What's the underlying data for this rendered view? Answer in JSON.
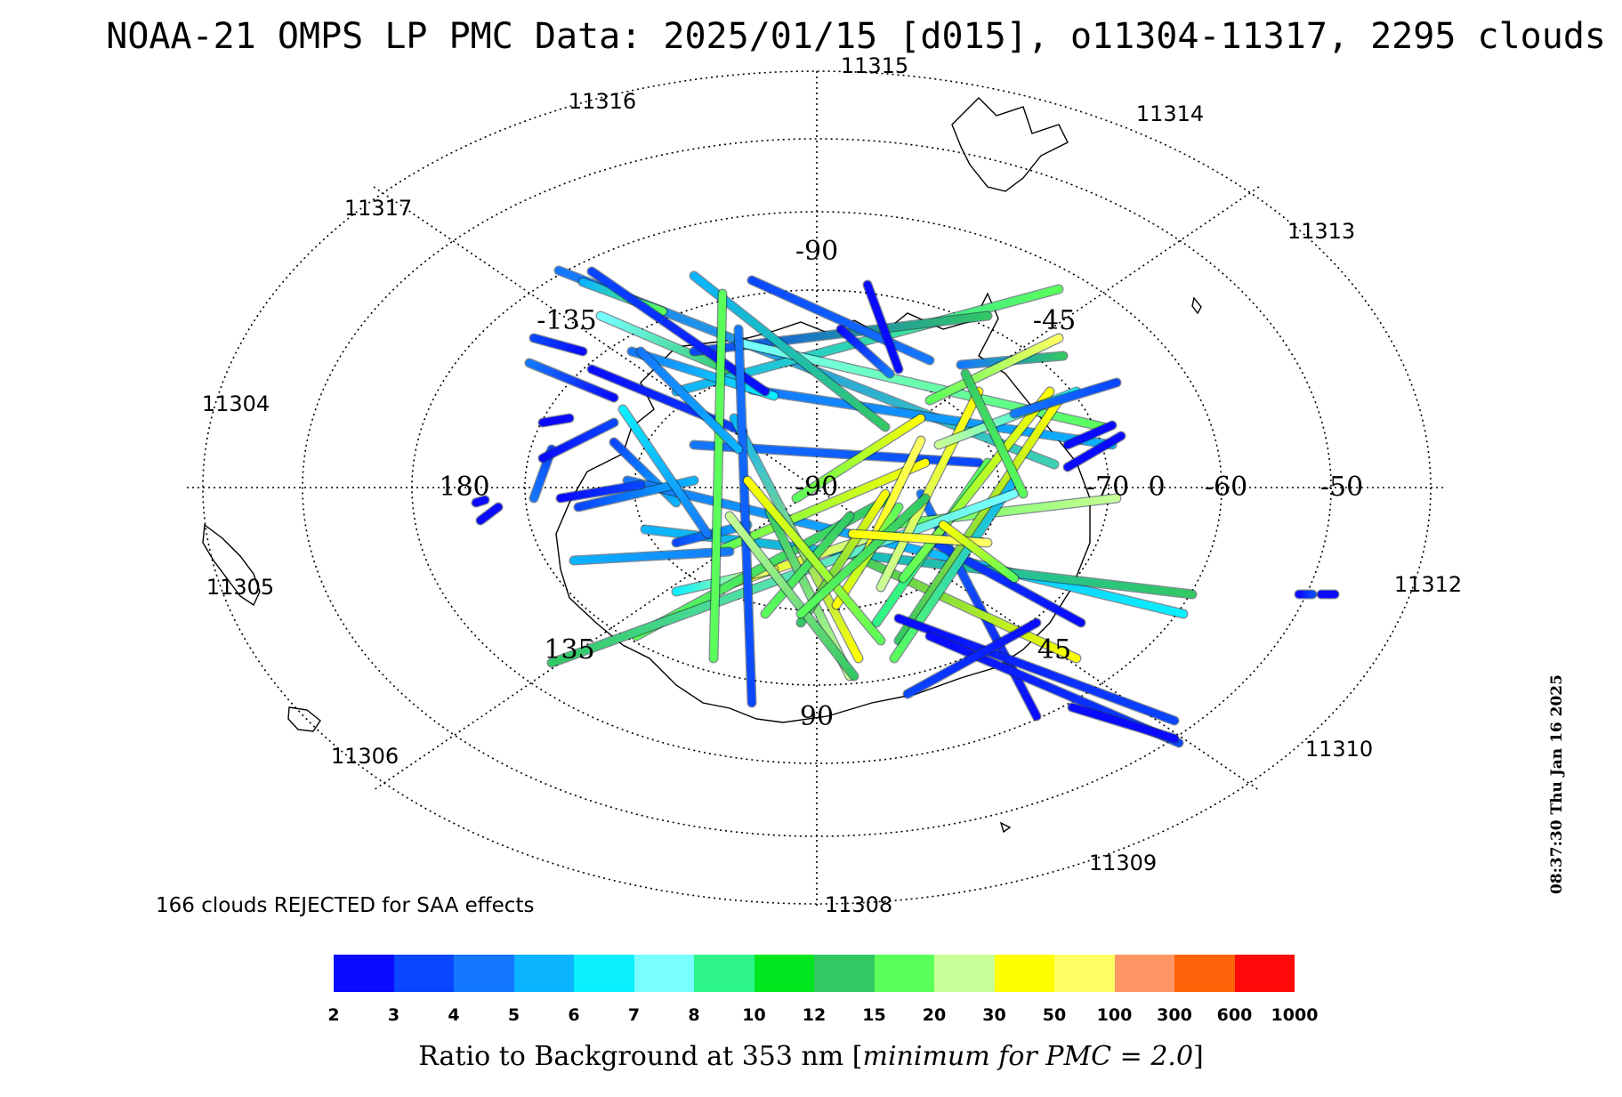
{
  "title": "NOAA-21 OMPS LP PMC Data: 2025/01/15 [d015], o11304-11317, 2295 clouds",
  "rejected_note": "166 clouds REJECTED for SAA effects",
  "timestamp": "08:37:30 Thu Jan 16 2025",
  "colorbar": {
    "caption_prefix": "Ratio to Background at 353 nm [",
    "caption_italic": "minimum for PMC = 2.0",
    "caption_suffix": "]",
    "labels": [
      "2",
      "3",
      "4",
      "5",
      "6",
      "7",
      "8",
      "10",
      "12",
      "15",
      "20",
      "30",
      "50",
      "100",
      "300",
      "600",
      "1000"
    ],
    "colors": [
      "#0a0aff",
      "#0a46ff",
      "#1478ff",
      "#0ab4ff",
      "#0af0ff",
      "#78ffff",
      "#2ef58a",
      "#00e61e",
      "#32c864",
      "#5aff5a",
      "#c8ff96",
      "#ffff00",
      "#ffff64",
      "#ff9664",
      "#ff640a",
      "#ff0a0a"
    ]
  },
  "grid": {
    "longitude_labels": [
      "-90",
      "-135",
      "-45",
      "180",
      "-90",
      "0",
      "135",
      "45",
      "90"
    ],
    "latitude_labels": [
      "-70",
      "-60",
      "-50"
    ],
    "orbit_labels": [
      "11315",
      "11316",
      "11314",
      "11317",
      "11313",
      "11304",
      "11305",
      "11312",
      "11306",
      "11310",
      "11309",
      "11308"
    ]
  },
  "chart_data": {
    "type": "scatter",
    "projection": "south-polar-stereographic",
    "title": "NOAA-21 OMPS LP PMC Data: 2025/01/15 [d015], o11304-11317, 2295 clouds",
    "colorbar_caption": "Ratio to Background at 353 nm [minimum for PMC = 2.0]",
    "total_clouds": 2295,
    "rejected_clouds": 166,
    "orbits": [
      "11304",
      "11305",
      "11306",
      "11308",
      "11309",
      "11310",
      "11312",
      "11313",
      "11314",
      "11315",
      "11316",
      "11317"
    ],
    "legend": "bottom colorbar"
  }
}
